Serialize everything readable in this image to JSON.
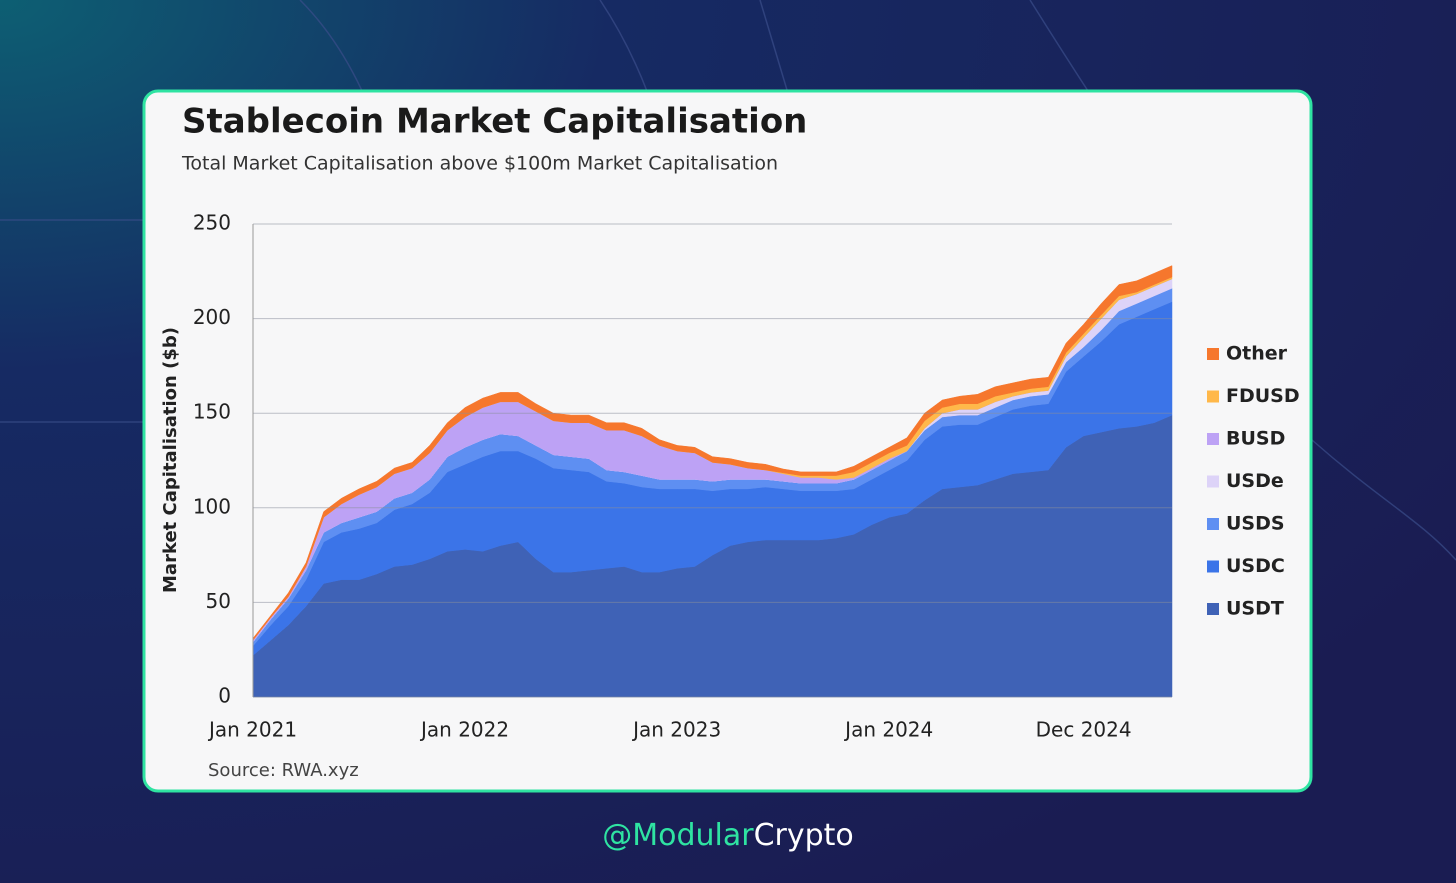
{
  "chart_data": {
    "type": "stacked_area",
    "title": "Stablecoin Market Capitalisation",
    "subtitle": "Total Market Capitalisation above $100m Market Capitalisation",
    "ylabel": "Market Capitalisation ($b)",
    "source": "Source: RWA.xyz",
    "x": [
      "2021-01",
      "2021-02",
      "2021-03",
      "2021-04",
      "2021-05",
      "2021-06",
      "2021-07",
      "2021-08",
      "2021-09",
      "2021-10",
      "2021-11",
      "2021-12",
      "2022-01",
      "2022-02",
      "2022-03",
      "2022-04",
      "2022-05",
      "2022-06",
      "2022-07",
      "2022-08",
      "2022-09",
      "2022-10",
      "2022-11",
      "2022-12",
      "2023-01",
      "2023-02",
      "2023-03",
      "2023-04",
      "2023-05",
      "2023-06",
      "2023-07",
      "2023-08",
      "2023-09",
      "2023-10",
      "2023-11",
      "2023-12",
      "2024-01",
      "2024-02",
      "2024-03",
      "2024-04",
      "2024-05",
      "2024-06",
      "2024-07",
      "2024-08",
      "2024-09",
      "2024-10",
      "2024-11",
      "2024-12",
      "2025-01",
      "2025-02",
      "2025-03",
      "2025-04",
      "2025-05"
    ],
    "xlim": [
      "2021-01",
      "2025-05"
    ],
    "xticks": [
      {
        "value": "2021-01",
        "label": "Jan 2021"
      },
      {
        "value": "2022-01",
        "label": "Jan 2022"
      },
      {
        "value": "2023-01",
        "label": "Jan 2023"
      },
      {
        "value": "2024-01",
        "label": "Jan 2024"
      },
      {
        "value": "2024-12",
        "label": "Dec 2024"
      }
    ],
    "ylim": [
      0,
      250
    ],
    "yticks": [
      0,
      50,
      100,
      150,
      200,
      250
    ],
    "grid": true,
    "legend": "right",
    "series": [
      {
        "name": "USDT",
        "color": "#3f62b6",
        "values": [
          22,
          30,
          38,
          48,
          60,
          62,
          62,
          65,
          69,
          70,
          73,
          77,
          78,
          77,
          80,
          82,
          73,
          66,
          66,
          67,
          68,
          69,
          66,
          66,
          68,
          69,
          75,
          80,
          82,
          83,
          83,
          83,
          83,
          84,
          86,
          91,
          95,
          97,
          104,
          110,
          111,
          112,
          115,
          118,
          119,
          120,
          132,
          138,
          140,
          142,
          143,
          145,
          149
        ]
      },
      {
        "name": "USDC",
        "color": "#3b74e8",
        "values": [
          5,
          8,
          10,
          14,
          22,
          25,
          27,
          27,
          30,
          32,
          35,
          42,
          45,
          50,
          50,
          48,
          53,
          55,
          54,
          52,
          46,
          44,
          45,
          44,
          42,
          41,
          34,
          30,
          28,
          28,
          27,
          26,
          26,
          25,
          24,
          24,
          25,
          28,
          32,
          33,
          33,
          32,
          33,
          34,
          35,
          35,
          40,
          42,
          48,
          55,
          58,
          60,
          60
        ]
      },
      {
        "name": "USDS",
        "color": "#5e8ff2",
        "values": [
          2,
          3,
          4,
          5,
          5,
          5,
          6,
          6,
          6,
          6,
          7,
          8,
          9,
          9,
          9,
          8,
          7,
          7,
          7,
          7,
          6,
          6,
          6,
          5,
          5,
          5,
          5,
          5,
          5,
          4,
          4,
          4,
          4,
          4,
          5,
          5,
          5,
          5,
          5,
          5,
          5,
          5,
          5,
          5,
          5,
          5,
          5,
          5,
          6,
          7,
          7,
          7,
          7
        ]
      },
      {
        "name": "USDe",
        "color": "#ddd3f8",
        "values": [
          0,
          0,
          0,
          0,
          0,
          0,
          0,
          0,
          0,
          0,
          0,
          0,
          0,
          0,
          0,
          0,
          0,
          0,
          0,
          0,
          0,
          0,
          0,
          0,
          0,
          0,
          0,
          0,
          0,
          0,
          0,
          0,
          0,
          0,
          0,
          0,
          0,
          0,
          1,
          2,
          3,
          3,
          3,
          2,
          2,
          2,
          3,
          5,
          6,
          6,
          5,
          5,
          5
        ]
      },
      {
        "name": "BUSD",
        "color": "#bda2f5",
        "values": [
          1,
          1,
          1,
          2,
          8,
          10,
          12,
          13,
          13,
          13,
          14,
          14,
          16,
          17,
          17,
          18,
          18,
          18,
          18,
          19,
          21,
          22,
          21,
          18,
          15,
          14,
          10,
          8,
          6,
          5,
          4,
          3,
          3,
          2,
          1,
          1,
          1,
          0,
          0,
          0,
          0,
          0,
          0,
          0,
          0,
          0,
          0,
          0,
          0,
          0,
          0,
          0,
          0
        ]
      },
      {
        "name": "FDUSD",
        "color": "#ffb84a",
        "values": [
          0,
          0,
          0,
          0,
          0,
          0,
          0,
          0,
          0,
          0,
          0,
          0,
          0,
          0,
          0,
          0,
          0,
          0,
          0,
          0,
          0,
          0,
          0,
          0,
          0,
          0,
          0,
          0,
          0,
          0,
          0.5,
          1,
          1,
          2,
          3,
          3,
          3,
          3,
          4,
          3,
          3,
          3,
          3,
          2,
          2,
          2,
          2,
          2,
          2,
          2,
          1,
          1,
          1
        ]
      },
      {
        "name": "Other",
        "color": "#f6772d",
        "values": [
          1,
          1,
          2,
          2,
          3,
          3,
          3,
          3,
          3,
          3,
          4,
          4,
          5,
          5,
          5,
          5,
          4,
          4,
          4,
          4,
          4,
          4,
          4,
          3,
          3,
          3,
          3,
          3,
          3,
          3,
          2,
          2,
          2,
          2,
          3,
          3,
          3,
          4,
          4,
          4,
          4,
          5,
          5,
          5,
          5,
          5,
          5,
          5,
          6,
          6,
          6,
          6,
          6
        ]
      }
    ]
  },
  "brand": {
    "prefix": "@Modular",
    "suffix": "Crypto"
  }
}
